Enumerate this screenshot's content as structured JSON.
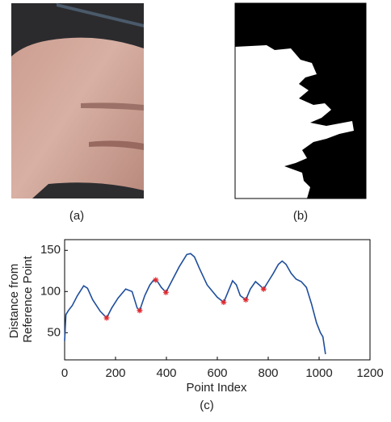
{
  "panel_labels": [
    "(a)",
    "(b)",
    "(c)"
  ],
  "chart_data": {
    "type": "line",
    "x_label": "Point Index",
    "y_label": [
      "Distance from",
      "Reference Point"
    ],
    "x": [
      0,
      5,
      15,
      30,
      50,
      75,
      90,
      110,
      140,
      165,
      185,
      210,
      240,
      265,
      285,
      295,
      315,
      335,
      350,
      365,
      380,
      398,
      420,
      450,
      480,
      495,
      510,
      530,
      560,
      600,
      625,
      640,
      660,
      675,
      690,
      712,
      730,
      750,
      765,
      782,
      800,
      820,
      840,
      855,
      870,
      890,
      910,
      930,
      950,
      970,
      990,
      1005,
      1015,
      1025
    ],
    "values": [
      40,
      72,
      77,
      83,
      95,
      107,
      104,
      90,
      76,
      68,
      80,
      92,
      103,
      100,
      80,
      77,
      95,
      108,
      114,
      112,
      105,
      99,
      112,
      130,
      145,
      146,
      142,
      128,
      108,
      93,
      87,
      98,
      113,
      108,
      95,
      90,
      103,
      112,
      108,
      103,
      112,
      122,
      133,
      137,
      133,
      122,
      115,
      112,
      105,
      85,
      62,
      50,
      45,
      24
    ],
    "color": "#1f4e9c",
    "markers": {
      "x": [
        165,
        295,
        358,
        398,
        625,
        712,
        782
      ],
      "values": [
        68,
        77,
        114,
        99,
        87,
        90,
        103
      ],
      "color": "#e0282e"
    },
    "xlim": [
      0,
      1200
    ],
    "xticks": [
      0,
      200,
      400,
      600,
      800,
      1000,
      1200
    ],
    "ylim": [
      17,
      163
    ],
    "yticks": [
      50,
      100,
      150
    ]
  }
}
